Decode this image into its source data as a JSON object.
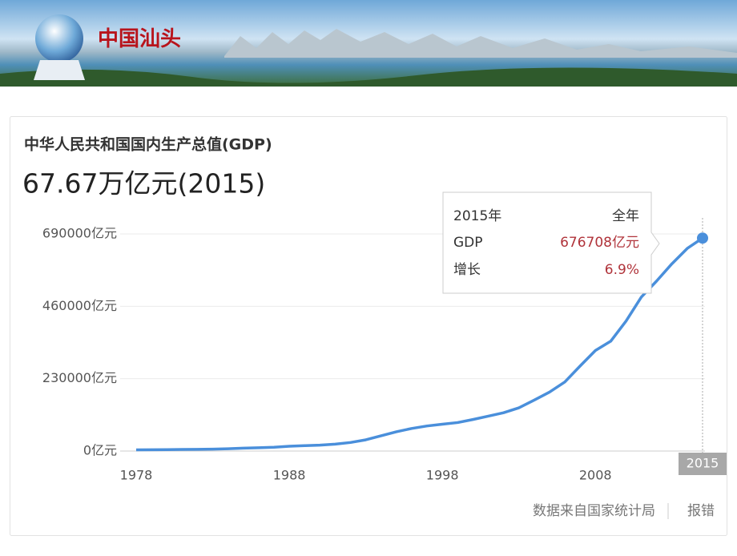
{
  "header": {
    "logo_text": "中国汕头"
  },
  "chart_data": {
    "type": "line",
    "title": "中华人民共和国国内生产总值(GDP)",
    "subtitle": "67.67万亿元(2015)",
    "x": [
      1978,
      1979,
      1980,
      1981,
      1982,
      1983,
      1984,
      1985,
      1986,
      1987,
      1988,
      1989,
      1990,
      1991,
      1992,
      1993,
      1994,
      1995,
      1996,
      1997,
      1998,
      1999,
      2000,
      2001,
      2002,
      2003,
      2004,
      2005,
      2006,
      2007,
      2008,
      2009,
      2010,
      2011,
      2012,
      2013,
      2014,
      2015
    ],
    "values": [
      3679,
      4101,
      4588,
      4936,
      5373,
      6021,
      7279,
      9099,
      10376,
      12175,
      15180,
      17180,
      18873,
      22006,
      27195,
      35673,
      48638,
      61340,
      71814,
      79715,
      85196,
      90564,
      100280,
      110863,
      121717,
      137422,
      161840,
      187319,
      219439,
      270232,
      319516,
      349081,
      413030,
      489301,
      540367,
      595244,
      643974,
      676708
    ],
    "color": "#4a8fdb",
    "xlim": [
      1978,
      2015
    ],
    "xticks": [
      1978,
      1988,
      1998,
      2008
    ],
    "ylim": [
      0,
      690000
    ],
    "yticks": [
      {
        "value": 0,
        "label": "0亿元"
      },
      {
        "value": 230000,
        "label": "230000亿元"
      },
      {
        "value": 460000,
        "label": "460000亿元"
      },
      {
        "value": 690000,
        "label": "690000亿元"
      }
    ],
    "grid": true,
    "highlight_x": 2015,
    "tooltip": {
      "period": "2015年",
      "scope": "全年",
      "rows": [
        {
          "label": "GDP",
          "value": "676708亿元"
        },
        {
          "label": "增长",
          "value": "6.9%"
        }
      ]
    },
    "source": "数据来自国家统计局",
    "report": "报错"
  }
}
